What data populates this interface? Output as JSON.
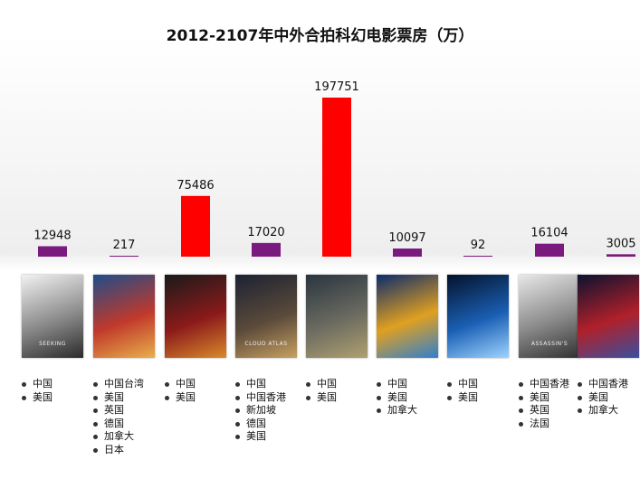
{
  "chart_data": {
    "type": "bar",
    "title": "2012-2107年中外合拍科幻电影票房（万）",
    "values": [
      12948,
      217,
      75486,
      17020,
      197751,
      10097,
      92,
      16104,
      3005
    ],
    "bar_colors": [
      "#7b1a7e",
      "#7b1a7e",
      "#ff0000",
      "#7b1a7e",
      "#ff0000",
      "#7b1a7e",
      "#7b1a7e",
      "#7b1a7e",
      "#7b1a7e"
    ],
    "ylim": [
      0,
      200000
    ],
    "grid": false,
    "legend": "none"
  },
  "films": [
    {
      "countries": [
        "中国",
        "美国"
      ],
      "poster_colors": [
        "#f2f2f2",
        "#8a8a8a",
        "#2a2a2a"
      ],
      "poster_text": "SEEKING"
    },
    {
      "countries": [
        "中国台湾",
        "美国",
        "英国",
        "德国",
        "加拿大",
        "日本"
      ],
      "poster_colors": [
        "#1f4d8a",
        "#c0392b",
        "#e8b04a"
      ],
      "poster_text": ""
    },
    {
      "countries": [
        "中国",
        "美国"
      ],
      "poster_colors": [
        "#1a1a1a",
        "#8b1a1a",
        "#d98a2b"
      ],
      "poster_text": ""
    },
    {
      "countries": [
        "中国",
        "中国香港",
        "新加坡",
        "德国",
        "美国"
      ],
      "poster_colors": [
        "#1c2233",
        "#5a4a3a",
        "#c8a060"
      ],
      "poster_text": "CLOUD ATLAS"
    },
    {
      "countries": [
        "中国",
        "美国"
      ],
      "poster_colors": [
        "#2a3540",
        "#6b6b60",
        "#b0a070"
      ],
      "poster_text": ""
    },
    {
      "countries": [
        "中国",
        "美国",
        "加拿大"
      ],
      "poster_colors": [
        "#0d2b6b",
        "#e0a020",
        "#2f7fd0"
      ],
      "poster_text": ""
    },
    {
      "countries": [
        "中国",
        "美国"
      ],
      "poster_colors": [
        "#04122a",
        "#1a5fb4",
        "#9fd4ff"
      ],
      "poster_text": ""
    },
    {
      "countries": [
        "中国香港",
        "美国",
        "英国",
        "法国"
      ],
      "poster_colors": [
        "#e8e8e8",
        "#8a8a8a",
        "#303030"
      ],
      "poster_text": "ASSASSIN'S"
    },
    {
      "countries": [
        "中国香港",
        "美国",
        "加拿大"
      ],
      "poster_colors": [
        "#0b1230",
        "#b0202a",
        "#3a4fa0"
      ],
      "poster_text": ""
    }
  ]
}
